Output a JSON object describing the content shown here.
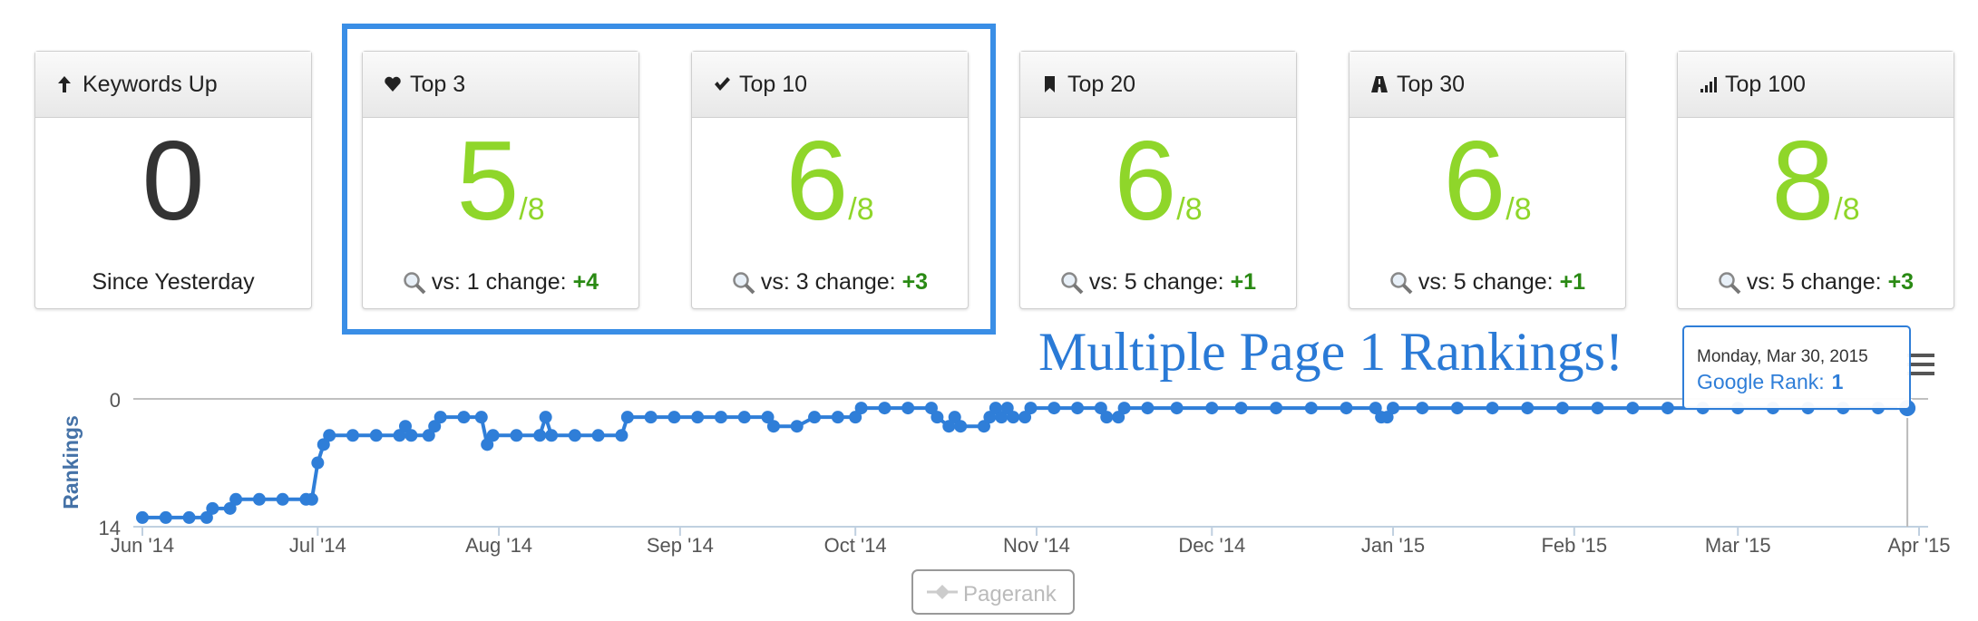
{
  "cards": [
    {
      "title": "Keywords Up",
      "value": 0,
      "footer": "Since Yesterday"
    },
    {
      "title": "Top 3",
      "value": 5,
      "denominator": "/8",
      "footer": "vs: 1 change:",
      "change": "+4"
    },
    {
      "title": "Top 10",
      "value": 6,
      "denominator": "/8",
      "footer": "vs: 3 change:",
      "change": "+3"
    },
    {
      "title": "Top 20",
      "value": 6,
      "denominator": "/8",
      "footer": "vs: 5 change:",
      "change": "+1"
    },
    {
      "title": "Top 30",
      "value": 6,
      "denominator": "/8",
      "footer": "vs: 5 change:",
      "change": "+1"
    },
    {
      "title": "Top 100",
      "value": 8,
      "denominator": "/8",
      "footer": "vs: 5 change:",
      "change": "+3"
    }
  ],
  "chart_data": {
    "type": "line",
    "annotation": "Multiple Page 1 Rankings!",
    "y_label": "Rankings",
    "y_reversed": true,
    "ylim": [
      0,
      14
    ],
    "yticks": [
      0,
      14
    ],
    "xlim": [
      "2014-06-01",
      "2015-04-01"
    ],
    "xticks": [
      {
        "value": "2014-06-01",
        "label": "Jun '14"
      },
      {
        "value": "2014-07-01",
        "label": "Jul '14"
      },
      {
        "value": "2014-08-01",
        "label": "Aug '14"
      },
      {
        "value": "2014-09-01",
        "label": "Sep '14"
      },
      {
        "value": "2014-10-01",
        "label": "Oct '14"
      },
      {
        "value": "2014-11-01",
        "label": "Nov '14"
      },
      {
        "value": "2014-12-01",
        "label": "Dec '14"
      },
      {
        "value": "2015-01-01",
        "label": "Jan '15"
      },
      {
        "value": "2015-02-01",
        "label": "Feb '15"
      },
      {
        "value": "2015-03-01",
        "label": "Mar '15"
      },
      {
        "value": "2015-04-01",
        "label": "Apr '15"
      }
    ],
    "x": [
      "2014-06-01",
      "2014-06-05",
      "2014-06-09",
      "2014-06-12",
      "2014-06-13",
      "2014-06-16",
      "2014-06-17",
      "2014-06-21",
      "2014-06-25",
      "2014-06-29",
      "2014-06-30",
      "2014-07-01",
      "2014-07-02",
      "2014-07-03",
      "2014-07-07",
      "2014-07-11",
      "2014-07-15",
      "2014-07-16",
      "2014-07-17",
      "2014-07-20",
      "2014-07-21",
      "2014-07-22",
      "2014-07-26",
      "2014-07-29",
      "2014-07-30",
      "2014-07-31",
      "2014-08-04",
      "2014-08-08",
      "2014-08-09",
      "2014-08-10",
      "2014-08-14",
      "2014-08-18",
      "2014-08-22",
      "2014-08-23",
      "2014-08-27",
      "2014-08-31",
      "2014-09-04",
      "2014-09-08",
      "2014-09-12",
      "2014-09-16",
      "2014-09-17",
      "2014-09-21",
      "2014-09-24",
      "2014-09-28",
      "2014-10-01",
      "2014-10-02",
      "2014-10-06",
      "2014-10-10",
      "2014-10-14",
      "2014-10-15",
      "2014-10-17",
      "2014-10-18",
      "2014-10-19",
      "2014-10-23",
      "2014-10-24",
      "2014-10-25",
      "2014-10-26",
      "2014-10-27",
      "2014-10-28",
      "2014-10-30",
      "2014-10-31",
      "2014-11-04",
      "2014-11-08",
      "2014-11-12",
      "2014-11-13",
      "2014-11-15",
      "2014-11-16",
      "2014-11-20",
      "2014-11-25",
      "2014-12-01",
      "2014-12-06",
      "2014-12-12",
      "2014-12-18",
      "2014-12-24",
      "2014-12-29",
      "2014-12-30",
      "2014-12-31",
      "2015-01-01",
      "2015-01-06",
      "2015-01-12",
      "2015-01-18",
      "2015-01-24",
      "2015-01-30",
      "2015-02-05",
      "2015-02-11",
      "2015-02-17",
      "2015-02-23",
      "2015-03-01",
      "2015-03-07",
      "2015-03-13",
      "2015-03-19",
      "2015-03-25",
      "2015-03-30"
    ],
    "series": [
      {
        "name": "Google Rank",
        "color": "#2f7ed8",
        "values": [
          13,
          13,
          13,
          13,
          12,
          12,
          11,
          11,
          11,
          11,
          11,
          7,
          5,
          4,
          4,
          4,
          4,
          3,
          4,
          4,
          3,
          2,
          2,
          2,
          5,
          4,
          4,
          4,
          2,
          4,
          4,
          4,
          4,
          2,
          2,
          2,
          2,
          2,
          2,
          2,
          3,
          3,
          2,
          2,
          2,
          1,
          1,
          1,
          1,
          2,
          3,
          2,
          3,
          3,
          2,
          1,
          2,
          1,
          2,
          2,
          1,
          1,
          1,
          1,
          2,
          2,
          1,
          1,
          1,
          1,
          1,
          1,
          1,
          1,
          1,
          2,
          2,
          1,
          1,
          1,
          1,
          1,
          1,
          1,
          1,
          1,
          1,
          1,
          1,
          1,
          1,
          1,
          1
        ]
      }
    ],
    "legend": "Pagerank",
    "tooltip": {
      "date": "Monday, Mar 30, 2015",
      "label": "Google Rank:",
      "value": 1
    }
  }
}
